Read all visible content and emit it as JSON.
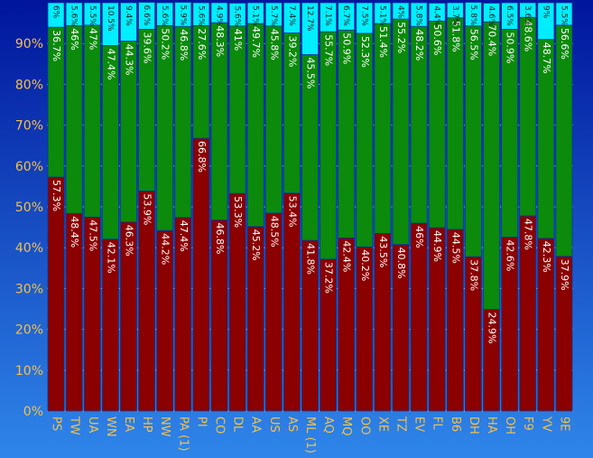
{
  "chart_data": {
    "type": "bar",
    "stacked": true,
    "title": "",
    "xlabel": "",
    "ylabel": "",
    "ylim": [
      0,
      100
    ],
    "y_tick_labels": [
      "0%",
      "10%",
      "20%",
      "30%",
      "40%",
      "50%",
      "60%",
      "70%",
      "80%",
      "90%"
    ],
    "grid": true,
    "categories": [
      "PS",
      "TW",
      "UA",
      "WN",
      "EA",
      "HP",
      "NW",
      "PA (1)",
      "PI",
      "CO",
      "DL",
      "AA",
      "US",
      "AS",
      "ML (1)",
      "AQ",
      "MQ",
      "OO",
      "XE",
      "TZ",
      "EV",
      "FL",
      "B6",
      "DH",
      "HA",
      "OH",
      "F9",
      "YV",
      "9E"
    ],
    "series": [
      {
        "color": "#8b0000",
        "values": [
          57.3,
          48.4,
          47.5,
          42.1,
          46.3,
          53.9,
          44.2,
          47.4,
          66.8,
          46.8,
          53.3,
          45.2,
          48.5,
          53.4,
          41.8,
          37.2,
          42.4,
          40.2,
          43.5,
          40.8,
          46,
          44.9,
          44.5,
          37.8,
          24.9,
          42.6,
          47.8,
          42.3,
          37.9
        ],
        "labels": [
          "57.3%",
          "48.4%",
          "47.5%",
          "42.1%",
          "46.3%",
          "53.9%",
          "44.2%",
          "47.4%",
          "66.8%",
          "46.8%",
          "53.3%",
          "45.2%",
          "48.5%",
          "53.4%",
          "41.8%",
          "37.2%",
          "42.4%",
          "40.2%",
          "43.5%",
          "40.8%",
          "46%",
          "44.9%",
          "44.5%",
          "37.8%",
          "24.9%",
          "42.6%",
          "47.8%",
          "42.3%",
          "37.9%"
        ]
      },
      {
        "color": "#0b8a0b",
        "values": [
          36.7,
          46,
          47,
          47.4,
          44.3,
          39.6,
          50.2,
          46.8,
          27.6,
          48.3,
          41,
          49.7,
          45.8,
          39.2,
          45.5,
          55.7,
          50.9,
          52.3,
          51.4,
          55.2,
          48.2,
          50.6,
          51.8,
          56.5,
          70.4,
          50.9,
          48.6,
          48.7,
          56.6
        ],
        "labels": [
          "36.7%",
          "46%",
          "47%",
          "47.4%",
          "44.3%",
          "39.6%",
          "50.2%",
          "46.8%",
          "27.6%",
          "48.3%",
          "41%",
          "49.7%",
          "45.8%",
          "39.2%",
          "45.5%",
          "55.7%",
          "50.9%",
          "52.3%",
          "51.4%",
          "55.2%",
          "48.2%",
          "50.6%",
          "51.8%",
          "56.5%",
          "70.4%",
          "50.9%",
          "48.6%",
          "48.7%",
          "56.6%"
        ]
      },
      {
        "color": "#00eeff",
        "values": [
          6,
          5.6,
          5.5,
          10.5,
          9.4,
          6.6,
          5.6,
          5.9,
          5.6,
          4.9,
          5.6,
          5.1,
          5.7,
          7.4,
          12.7,
          7.1,
          6.7,
          7.5,
          5.1,
          4,
          5.8,
          4.4,
          3.7,
          5.8,
          4.6,
          6.5,
          3.6,
          9,
          5.5
        ],
        "labels": [
          "6%",
          "5.6%",
          "5.5%",
          "10.5%",
          "9.4%",
          "6.6%",
          "5.6%",
          "5.9%",
          "5.6%",
          "4.9%",
          "5.6%",
          "5.1%",
          "5.7%",
          "7.4%",
          "12.7%",
          "7.1%",
          "6.7%",
          "7.5%",
          "5.1%",
          "4%",
          "5.8%",
          "4.4%",
          "3.7%",
          "5.8%",
          "4.6%",
          "6.5%",
          "3.6%",
          "9%",
          "5.5%"
        ]
      }
    ],
    "colors": {
      "background_top": "#00159c",
      "background_bottom": "#2f86ea",
      "axis_text": "#f2c14e",
      "grid": "#c8c8ff",
      "bar_border": "#003aa0"
    }
  }
}
